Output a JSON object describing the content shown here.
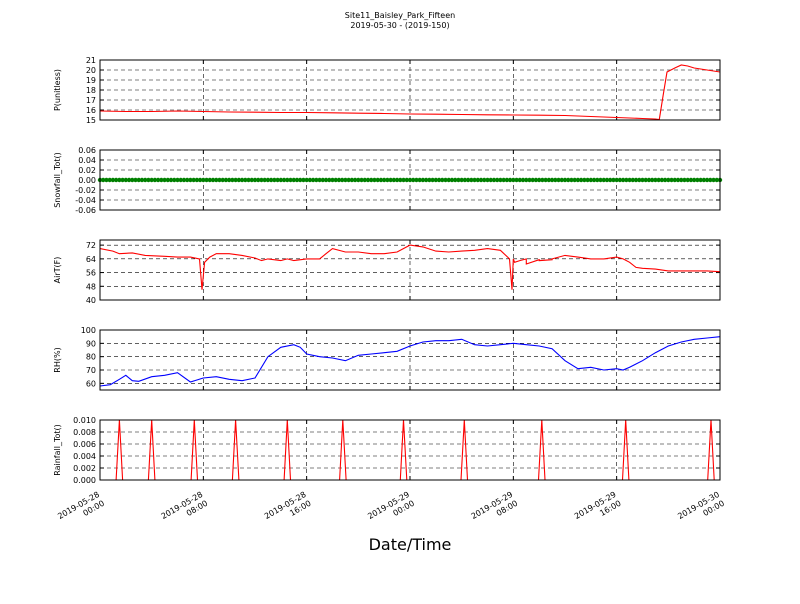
{
  "chart_data": {
    "type": "line",
    "title": "Site11_Baisley_Park_Fifteen",
    "subtitle": "2019-05-30 - (2019-150)",
    "xlabel": "Date/Time",
    "x_range_hours": [
      0,
      48
    ],
    "x_ticks": [
      {
        "h": 0,
        "line1": "2019-05-28",
        "line2": "00:00"
      },
      {
        "h": 8,
        "line1": "2019-05-28",
        "line2": "08:00"
      },
      {
        "h": 16,
        "line1": "2019-05-28",
        "line2": "16:00"
      },
      {
        "h": 24,
        "line1": "2019-05-29",
        "line2": "00:00"
      },
      {
        "h": 32,
        "line1": "2019-05-29",
        "line2": "08:00"
      },
      {
        "h": 40,
        "line1": "2019-05-29",
        "line2": "16:00"
      },
      {
        "h": 48,
        "line1": "2019-05-30",
        "line2": "00:00"
      }
    ],
    "panels": [
      {
        "ylabel": "P(unitless)",
        "ylim": [
          15,
          21
        ],
        "yticks": [
          "15",
          "16",
          "17",
          "18",
          "19",
          "20",
          "21"
        ],
        "ytick_values": [
          15,
          16,
          17,
          18,
          19,
          20,
          21
        ],
        "color": "#ff0000",
        "style": "line",
        "points": [
          [
            0,
            15.9
          ],
          [
            2,
            15.85
          ],
          [
            4,
            15.85
          ],
          [
            6,
            15.9
          ],
          [
            8,
            15.85
          ],
          [
            10,
            15.8
          ],
          [
            12,
            15.78
          ],
          [
            14,
            15.75
          ],
          [
            16,
            15.75
          ],
          [
            18,
            15.72
          ],
          [
            20,
            15.68
          ],
          [
            22,
            15.65
          ],
          [
            24,
            15.6
          ],
          [
            26,
            15.58
          ],
          [
            28,
            15.55
          ],
          [
            30,
            15.52
          ],
          [
            32,
            15.5
          ],
          [
            34,
            15.48
          ],
          [
            36,
            15.45
          ],
          [
            38,
            15.35
          ],
          [
            40,
            15.25
          ],
          [
            42,
            15.15
          ],
          [
            43,
            15.1
          ],
          [
            43.3,
            15.05
          ],
          [
            43.6,
            17.5
          ],
          [
            43.9,
            19.8
          ],
          [
            44.5,
            20.2
          ],
          [
            45,
            20.5
          ],
          [
            45.5,
            20.4
          ],
          [
            46,
            20.2
          ],
          [
            47,
            20.0
          ],
          [
            48,
            19.8
          ]
        ]
      },
      {
        "ylabel": "Snowfall_Tot()",
        "ylim": [
          -0.06,
          0.06
        ],
        "yticks": [
          "-0.06",
          "-0.04",
          "-0.02",
          "0.00",
          "0.02",
          "0.04",
          "0.06"
        ],
        "ytick_values": [
          -0.06,
          -0.04,
          -0.02,
          0,
          0.02,
          0.04,
          0.06
        ],
        "color": "#008000",
        "style": "markers",
        "points": [
          [
            0,
            0
          ],
          [
            48,
            0
          ]
        ]
      },
      {
        "ylabel": "AirT(F)",
        "ylim": [
          40,
          75
        ],
        "yticks": [
          "40",
          "48",
          "56",
          "64",
          "72"
        ],
        "ytick_values": [
          40,
          48,
          56,
          64,
          72
        ],
        "color": "#ff0000",
        "style": "line",
        "points": [
          [
            0,
            70
          ],
          [
            1,
            68.5
          ],
          [
            1.5,
            67
          ],
          [
            2.5,
            67.5
          ],
          [
            3.5,
            66
          ],
          [
            5,
            65.5
          ],
          [
            6,
            65
          ],
          [
            7,
            65
          ],
          [
            7.7,
            64
          ],
          [
            7.9,
            46
          ],
          [
            8.1,
            62
          ],
          [
            8.5,
            65
          ],
          [
            9,
            67
          ],
          [
            10,
            67
          ],
          [
            11,
            66
          ],
          [
            12,
            64.5
          ],
          [
            12.5,
            63
          ],
          [
            13,
            64
          ],
          [
            14,
            63
          ],
          [
            14.5,
            64
          ],
          [
            15,
            63
          ],
          [
            16,
            64
          ],
          [
            17,
            64
          ],
          [
            17.5,
            67
          ],
          [
            18,
            70
          ],
          [
            19,
            68
          ],
          [
            20,
            68
          ],
          [
            21,
            67
          ],
          [
            22,
            67
          ],
          [
            23,
            68
          ],
          [
            24,
            72
          ],
          [
            25,
            71
          ],
          [
            26,
            68.5
          ],
          [
            27,
            68
          ],
          [
            28,
            68.5
          ],
          [
            29,
            69
          ],
          [
            30,
            70
          ],
          [
            31,
            69
          ],
          [
            32,
            64
          ],
          [
            33,
            64
          ],
          [
            34,
            63.5
          ],
          [
            35,
            63.5
          ],
          [
            31.7,
            64
          ],
          [
            31.9,
            46
          ],
          [
            32.1,
            62
          ],
          [
            32.5,
            63
          ],
          [
            33,
            61
          ],
          [
            34,
            63
          ],
          [
            35,
            64
          ],
          [
            36,
            66
          ],
          [
            37,
            65
          ],
          [
            38,
            64
          ],
          [
            39,
            64
          ],
          [
            40,
            65
          ],
          [
            40.5,
            64
          ],
          [
            41,
            62
          ],
          [
            41.5,
            59
          ],
          [
            42,
            58.5
          ],
          [
            43,
            58
          ],
          [
            44,
            57
          ],
          [
            45,
            57
          ],
          [
            46,
            57
          ],
          [
            47,
            57
          ],
          [
            48,
            56.5
          ]
        ]
      },
      {
        "ylabel": "RH(%)",
        "ylim": [
          55,
          100
        ],
        "yticks": [
          "60",
          "70",
          "80",
          "90",
          "100"
        ],
        "ytick_values": [
          60,
          70,
          80,
          90,
          100
        ],
        "color": "#0000ff",
        "style": "line",
        "points": [
          [
            0,
            58
          ],
          [
            0.8,
            59
          ],
          [
            1.5,
            63
          ],
          [
            2,
            66
          ],
          [
            2.5,
            62
          ],
          [
            3,
            61.5
          ],
          [
            4,
            65
          ],
          [
            5,
            66
          ],
          [
            6,
            68
          ],
          [
            7,
            61
          ],
          [
            8,
            64
          ],
          [
            9,
            65
          ],
          [
            10,
            63
          ],
          [
            11,
            62
          ],
          [
            12,
            64
          ],
          [
            13,
            80
          ],
          [
            14,
            87
          ],
          [
            15,
            89
          ],
          [
            15.5,
            87
          ],
          [
            16,
            82
          ],
          [
            17,
            80
          ],
          [
            18,
            79
          ],
          [
            19,
            77
          ],
          [
            20,
            81
          ],
          [
            21,
            82
          ],
          [
            22,
            83
          ],
          [
            23,
            84
          ],
          [
            24,
            88
          ],
          [
            25,
            91
          ],
          [
            26,
            92
          ],
          [
            27,
            92
          ],
          [
            28,
            93
          ],
          [
            29,
            89
          ],
          [
            30,
            88
          ],
          [
            31,
            89
          ],
          [
            32,
            90
          ],
          [
            33,
            89
          ],
          [
            34,
            88
          ],
          [
            35,
            86
          ],
          [
            36,
            77
          ],
          [
            37,
            71
          ],
          [
            38,
            72
          ],
          [
            39,
            70
          ],
          [
            40,
            71
          ],
          [
            40.5,
            70
          ],
          [
            41,
            72
          ],
          [
            42,
            77
          ],
          [
            43,
            83
          ],
          [
            44,
            88
          ],
          [
            45,
            91
          ],
          [
            46,
            93
          ],
          [
            47,
            94
          ],
          [
            48,
            95
          ]
        ]
      },
      {
        "ylabel": "Rainfall_Tot()",
        "ylim": [
          0,
          0.01
        ],
        "yticks": [
          "0.000",
          "0.002",
          "0.004",
          "0.006",
          "0.008",
          "0.010"
        ],
        "ytick_values": [
          0,
          0.002,
          0.004,
          0.006,
          0.008,
          0.01
        ],
        "color": "#ff0000",
        "style": "spikes",
        "spikes": [
          1.5,
          4,
          7.3,
          10.5,
          14.5,
          18.8,
          23.5,
          28.2,
          34.2,
          40.7,
          47.3
        ]
      }
    ]
  }
}
